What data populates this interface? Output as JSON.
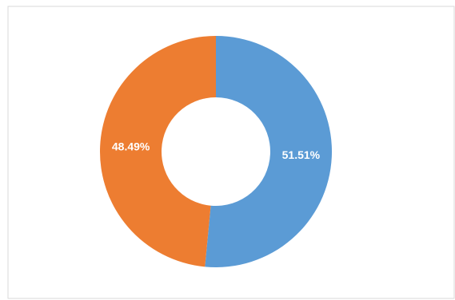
{
  "chart_data": {
    "type": "donut",
    "values": [
      51.51,
      48.49
    ],
    "value_labels": [
      "51.51%",
      "48.49%"
    ],
    "colors": [
      "#5b9bd5",
      "#ed7d31"
    ]
  }
}
